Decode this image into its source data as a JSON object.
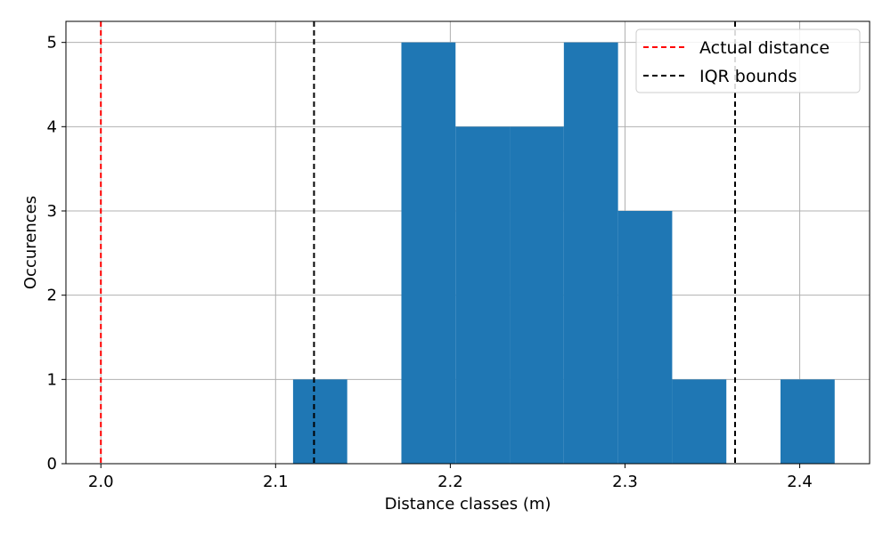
{
  "chart_data": {
    "type": "bar",
    "title": "",
    "xlabel": "Distance classes (m)",
    "ylabel": "Occurences",
    "xlim": [
      1.98,
      2.44
    ],
    "ylim": [
      0,
      5.25
    ],
    "grid": true,
    "bar_color": "#1f77b4",
    "x_ticks": [
      2.0,
      2.1,
      2.2,
      2.3,
      2.4
    ],
    "x_tick_labels": [
      "2.0",
      "2.1",
      "2.2",
      "2.3",
      "2.4"
    ],
    "y_ticks": [
      0,
      1,
      2,
      3,
      4,
      5
    ],
    "y_tick_labels": [
      "0",
      "1",
      "2",
      "3",
      "4",
      "5"
    ],
    "bins": [
      {
        "x0": 2.11,
        "x1": 2.141,
        "count": 1
      },
      {
        "x0": 2.141,
        "x1": 2.172,
        "count": 0
      },
      {
        "x0": 2.172,
        "x1": 2.203,
        "count": 5
      },
      {
        "x0": 2.203,
        "x1": 2.234,
        "count": 4
      },
      {
        "x0": 2.234,
        "x1": 2.265,
        "count": 4
      },
      {
        "x0": 2.265,
        "x1": 2.296,
        "count": 5
      },
      {
        "x0": 2.296,
        "x1": 2.327,
        "count": 3
      },
      {
        "x0": 2.327,
        "x1": 2.358,
        "count": 1
      },
      {
        "x0": 2.358,
        "x1": 2.389,
        "count": 0
      },
      {
        "x0": 2.389,
        "x1": 2.42,
        "count": 1
      }
    ],
    "vlines": [
      {
        "x": 2.0,
        "color": "#ff0000",
        "style": "dashed",
        "label": "Actual distance"
      },
      {
        "x": 2.122,
        "color": "#000000",
        "style": "dashed",
        "label": "IQR bounds"
      },
      {
        "x": 2.363,
        "color": "#000000",
        "style": "dashed",
        "label": ""
      }
    ],
    "legend": {
      "position": "top-right",
      "entries": [
        {
          "label": "Actual distance",
          "color": "#ff0000"
        },
        {
          "label": "IQR bounds",
          "color": "#000000"
        }
      ]
    }
  }
}
